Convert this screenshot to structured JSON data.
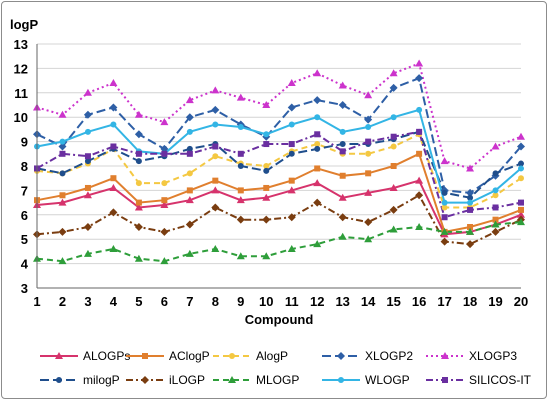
{
  "chart_data": {
    "type": "line",
    "title": "",
    "xlabel": "Compound",
    "ylabel": "logP",
    "x": [
      1,
      2,
      3,
      4,
      5,
      6,
      7,
      8,
      9,
      10,
      11,
      12,
      13,
      14,
      15,
      16,
      17,
      18,
      19,
      20
    ],
    "xlim": [
      1,
      20
    ],
    "ylim": [
      3,
      13
    ],
    "yticks": [
      3,
      4,
      5,
      6,
      7,
      8,
      9,
      10,
      11,
      12,
      13
    ],
    "grid": "horizontal",
    "legend_position": "bottom",
    "series": [
      {
        "name": "ALOGPs",
        "color": "#d6336c",
        "dash": "solid",
        "marker": "triangle",
        "values": [
          6.4,
          6.5,
          6.8,
          7.1,
          6.3,
          6.4,
          6.6,
          7.0,
          6.6,
          6.7,
          7.0,
          7.3,
          6.7,
          6.9,
          7.1,
          7.4,
          5.2,
          5.3,
          5.6,
          6.0
        ]
      },
      {
        "name": "AClogP",
        "color": "#e07f2e",
        "dash": "solid",
        "marker": "square",
        "values": [
          6.6,
          6.8,
          7.1,
          7.5,
          6.5,
          6.6,
          7.0,
          7.4,
          7.0,
          7.1,
          7.4,
          7.9,
          7.6,
          7.7,
          8.0,
          8.5,
          5.3,
          5.5,
          5.8,
          6.2
        ]
      },
      {
        "name": "AlogP",
        "color": "#f4c842",
        "dash": "dash",
        "marker": "circle",
        "values": [
          7.8,
          7.7,
          8.1,
          8.7,
          7.3,
          7.3,
          7.7,
          8.4,
          8.1,
          8.0,
          8.6,
          8.9,
          8.5,
          8.5,
          8.8,
          9.3,
          6.3,
          6.3,
          6.8,
          7.5
        ]
      },
      {
        "name": "XLOGP2",
        "color": "#2e5fa6",
        "dash": "longdash",
        "marker": "diamond",
        "values": [
          9.3,
          8.8,
          10.1,
          10.4,
          9.3,
          8.7,
          10.0,
          10.3,
          9.7,
          9.2,
          10.4,
          10.7,
          10.5,
          9.9,
          11.2,
          11.6,
          7.0,
          6.9,
          7.6,
          8.8
        ]
      },
      {
        "name": "XLOGP3",
        "color": "#cc33cc",
        "dash": "dot",
        "marker": "triangle",
        "values": [
          10.4,
          10.1,
          11.0,
          11.4,
          10.1,
          9.8,
          10.7,
          11.1,
          10.8,
          10.5,
          11.4,
          11.8,
          11.3,
          10.9,
          11.8,
          12.2,
          8.2,
          7.9,
          8.8,
          9.2
        ]
      },
      {
        "name": "milogP",
        "color": "#1f4e8c",
        "dash": "longdash",
        "marker": "circle",
        "values": [
          7.9,
          7.7,
          8.2,
          8.7,
          8.2,
          8.4,
          8.7,
          8.9,
          8.0,
          7.8,
          8.5,
          8.7,
          8.9,
          8.9,
          9.1,
          9.4,
          6.9,
          6.7,
          7.7,
          8.1
        ]
      },
      {
        "name": "iLOGP",
        "color": "#7a3d10",
        "dash": "dashdot",
        "marker": "diamond",
        "values": [
          5.2,
          5.3,
          5.5,
          6.1,
          5.5,
          5.3,
          5.6,
          6.3,
          5.8,
          5.8,
          5.9,
          6.5,
          5.9,
          5.7,
          6.2,
          6.8,
          4.9,
          4.8,
          5.3,
          5.8
        ]
      },
      {
        "name": "MLOGP",
        "color": "#2e9e3a",
        "dash": "dash",
        "marker": "triangle",
        "values": [
          4.2,
          4.1,
          4.4,
          4.6,
          4.2,
          4.1,
          4.4,
          4.6,
          4.3,
          4.3,
          4.6,
          4.8,
          5.1,
          5.0,
          5.4,
          5.5,
          5.3,
          5.3,
          5.6,
          5.7
        ]
      },
      {
        "name": "WLOGP",
        "color": "#33b5e5",
        "dash": "solid",
        "marker": "circle",
        "values": [
          8.8,
          9.0,
          9.4,
          9.7,
          8.6,
          8.5,
          9.4,
          9.7,
          9.6,
          9.3,
          9.7,
          10.0,
          9.4,
          9.6,
          10.0,
          10.3,
          6.5,
          6.5,
          7.0,
          7.9
        ]
      },
      {
        "name": "SILICOS-IT",
        "color": "#6a2fa0",
        "dash": "dashdot",
        "marker": "square",
        "values": [
          7.9,
          8.5,
          8.4,
          8.8,
          8.5,
          8.5,
          8.5,
          8.8,
          8.5,
          8.9,
          8.9,
          9.3,
          8.6,
          9.0,
          9.2,
          9.4,
          5.9,
          6.2,
          6.3,
          6.5
        ]
      }
    ]
  }
}
